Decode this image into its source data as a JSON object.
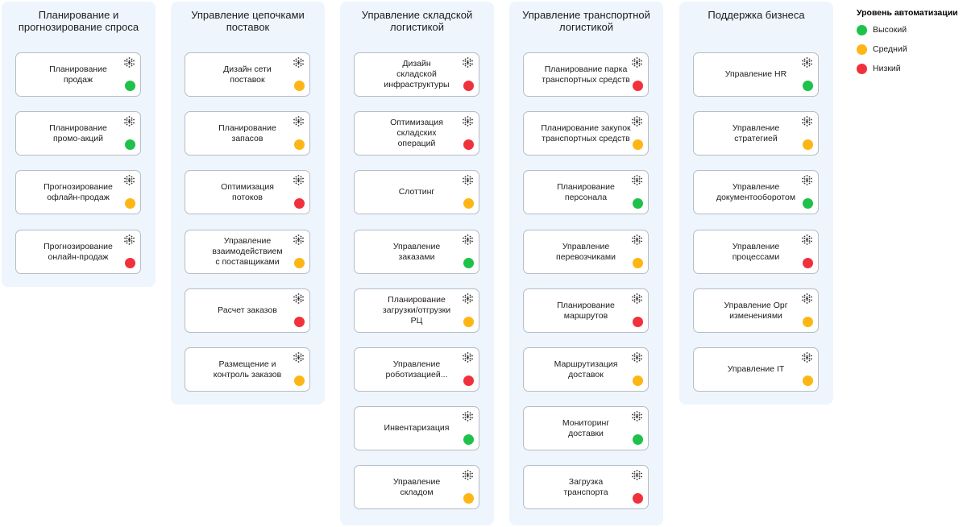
{
  "colors": {
    "high": "#1ec24a",
    "medium": "#fdb614",
    "low": "#f0313c"
  },
  "icons": {
    "card": "dot-grid-icon"
  },
  "legend": {
    "title": "Уровень автоматизации",
    "items": [
      {
        "label": "Высокий",
        "level": "high"
      },
      {
        "label": "Средний",
        "level": "medium"
      },
      {
        "label": "Низкий",
        "level": "low"
      }
    ]
  },
  "columns": [
    {
      "title": "Планирование и\nпрогнозирование спроса",
      "cards": [
        {
          "label": "Планирование\nпродаж",
          "level": "high"
        },
        {
          "label": "Планирование\nпромо-акций",
          "level": "high"
        },
        {
          "label": "Прогнозирование\nофлайн-продаж",
          "level": "medium"
        },
        {
          "label": "Прогнозирование\nонлайн-продаж",
          "level": "low"
        }
      ]
    },
    {
      "title": "Управление цепочками\nпоставок",
      "cards": [
        {
          "label": "Дизайн сети\nпоставок",
          "level": "medium"
        },
        {
          "label": "Планирование\nзапасов",
          "level": "medium"
        },
        {
          "label": "Оптимизация\nпотоков",
          "level": "low"
        },
        {
          "label": "Управление\nвзаимодействием\nс поставщиками",
          "level": "medium"
        },
        {
          "label": "Расчет заказов",
          "level": "low"
        },
        {
          "label": "Размещение и\nконтроль заказов",
          "level": "medium"
        }
      ]
    },
    {
      "title": "Управление складской\nлогистикой",
      "cards": [
        {
          "label": "Дизайн\nскладской\nинфраструктуры",
          "level": "low"
        },
        {
          "label": "Оптимизация\nскладских\nопераций",
          "level": "low"
        },
        {
          "label": "Слоттинг",
          "level": "medium"
        },
        {
          "label": "Управление\nзаказами",
          "level": "high"
        },
        {
          "label": "Планирование\nзагрузки/отгрузки\nРЦ",
          "level": "medium"
        },
        {
          "label": "Управление\nроботизацией...",
          "level": "low"
        },
        {
          "label": "Инвентаризация",
          "level": "high"
        },
        {
          "label": "Управление\nскладом",
          "level": "medium"
        }
      ]
    },
    {
      "title": "Управление транспортной\nлогистикой",
      "cards": [
        {
          "label": "Планирование парка\nтранспортных средств",
          "level": "low"
        },
        {
          "label": "Планирование закупок\nтранспортных средств",
          "level": "medium"
        },
        {
          "label": "Планирование\nперсонала",
          "level": "high"
        },
        {
          "label": "Управление\nперевозчиками",
          "level": "medium"
        },
        {
          "label": "Планирование\nмаршрутов",
          "level": "low"
        },
        {
          "label": "Маршрутизация\nдоставок",
          "level": "medium"
        },
        {
          "label": "Мониторинг\nдоставки",
          "level": "high"
        },
        {
          "label": "Загрузка\nтранспорта",
          "level": "low"
        }
      ]
    },
    {
      "title": "Поддержка бизнеса",
      "cards": [
        {
          "label": "Управление HR",
          "level": "high"
        },
        {
          "label": "Управление\nстратегией",
          "level": "medium"
        },
        {
          "label": "Управление\nдокументооборотом",
          "level": "high"
        },
        {
          "label": "Управление\nпроцессами",
          "level": "low"
        },
        {
          "label": "Управление Орг\nизменениями",
          "level": "medium"
        },
        {
          "label": "Управление IT",
          "level": "medium"
        }
      ]
    }
  ]
}
